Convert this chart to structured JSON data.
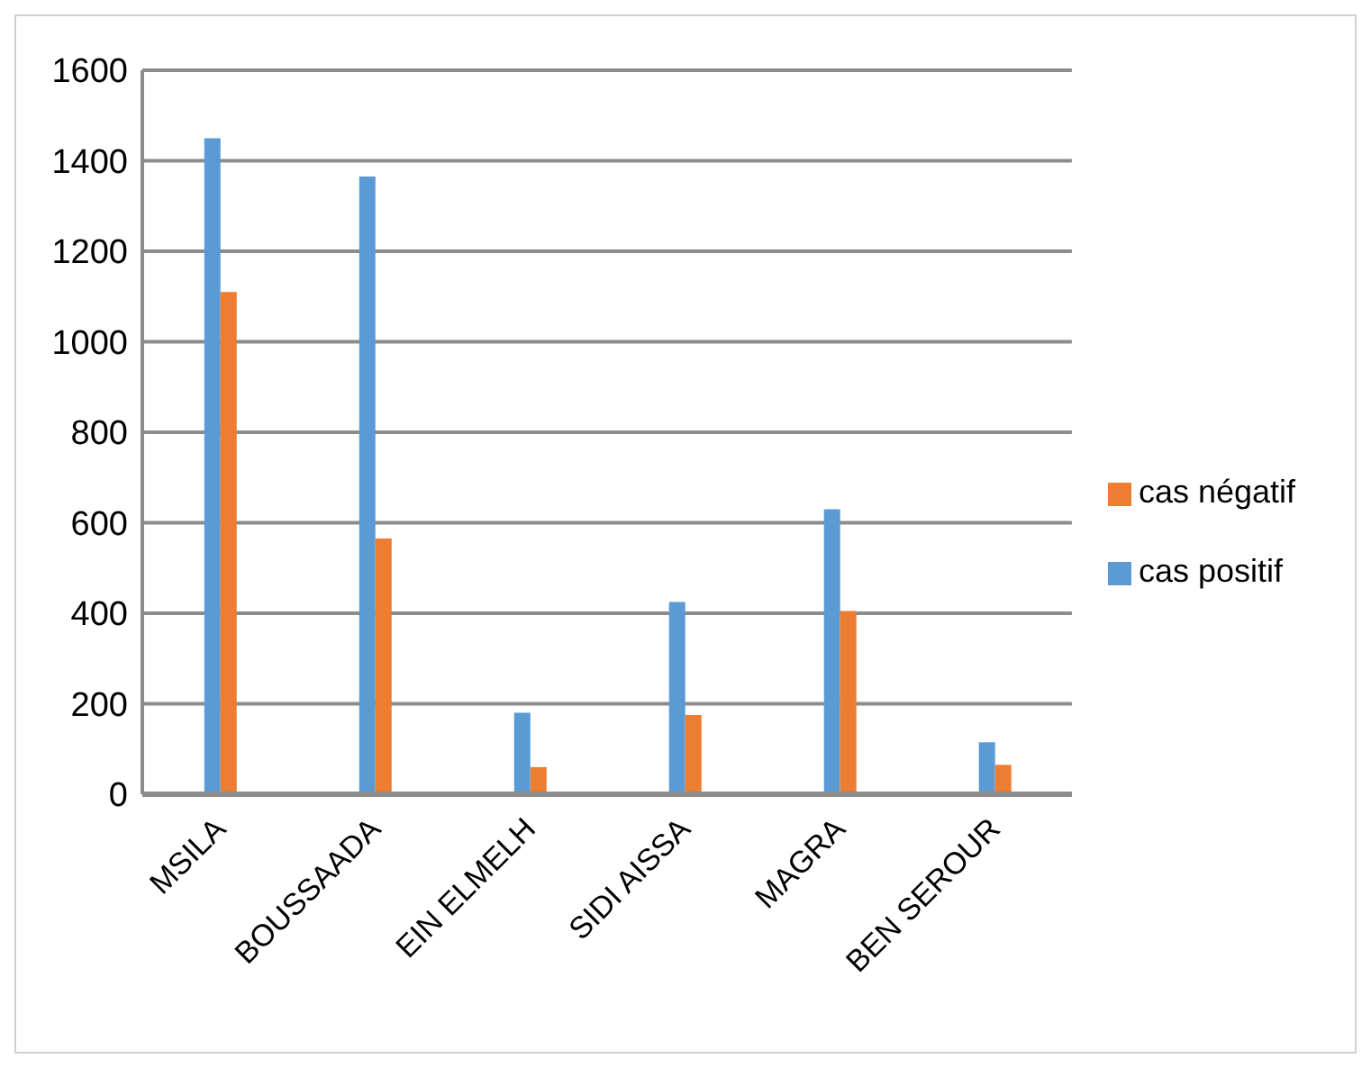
{
  "chart_data": {
    "type": "bar",
    "categories": [
      "MSILA",
      "BOUSSAADA",
      "EIN ELMELH",
      "SIDI AISSA",
      "MAGRA",
      "BEN SEROUR"
    ],
    "series": [
      {
        "name": "cas positif",
        "color": "#5b9bd5",
        "values": [
          1450,
          1365,
          180,
          425,
          630,
          115
        ]
      },
      {
        "name": "cas négatif",
        "color": "#ed7d31",
        "values": [
          1110,
          565,
          60,
          175,
          405,
          65
        ]
      }
    ],
    "ylim": [
      0,
      1600
    ],
    "yticks": [
      0,
      200,
      400,
      600,
      800,
      1000,
      1200,
      1400,
      1600
    ],
    "grid": "y",
    "legend": "right"
  }
}
